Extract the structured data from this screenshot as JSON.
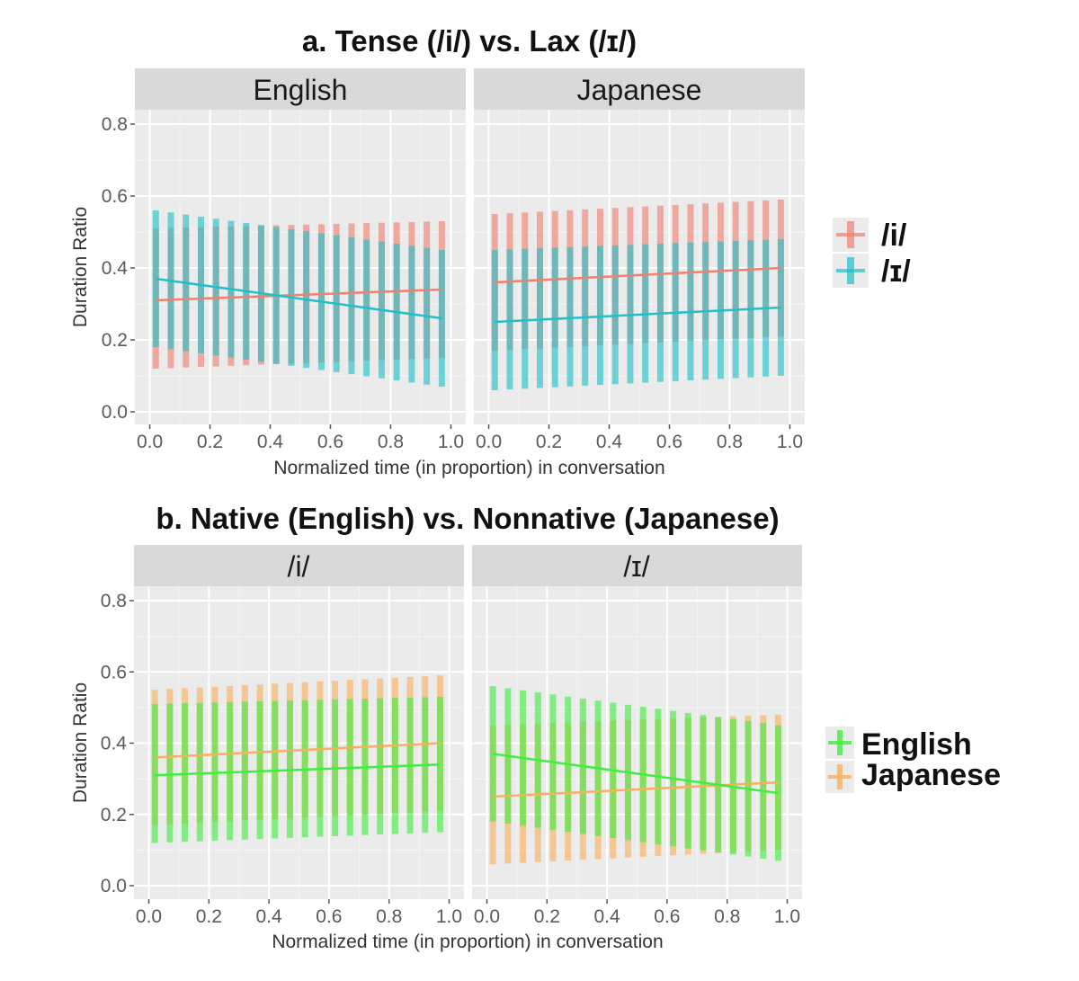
{
  "chart_data": [
    {
      "type": "line",
      "title": "a. Tense (/i/) vs. Lax (/ɪ/)",
      "ylabel": "Duration Ratio",
      "xlabel": "Normalized time (in proportion) in conversation",
      "ylim": [
        0,
        0.85
      ],
      "xlim": [
        0,
        1
      ],
      "yticks": [
        0.0,
        0.2,
        0.4,
        0.6,
        0.8
      ],
      "ytick_labels": [
        "0.0",
        "0.2",
        "0.4",
        "0.6",
        "0.8"
      ],
      "xticks": [
        0.0,
        0.2,
        0.4,
        0.6,
        0.8,
        1.0
      ],
      "xtick_labels": [
        "0.0",
        "0.2",
        "0.4",
        "0.6",
        "0.8",
        "1.0"
      ],
      "grid": true,
      "legend_position": "right",
      "legend": [
        {
          "label": "/i/",
          "color": "#f08070"
        },
        {
          "label": "/ɪ/",
          "color": "#20c0c8"
        }
      ],
      "x": [
        0.02,
        0.07,
        0.12,
        0.17,
        0.22,
        0.27,
        0.32,
        0.37,
        0.42,
        0.47,
        0.52,
        0.57,
        0.62,
        0.67,
        0.72,
        0.77,
        0.82,
        0.87,
        0.92,
        0.97
      ],
      "panels": [
        {
          "label": "English",
          "series": [
            {
              "name": "/i/",
              "color": "#f08070",
              "mean_start": 0.31,
              "mean_end": 0.34,
              "upper_start": 0.51,
              "upper_end": 0.53,
              "lower_start": 0.12,
              "lower_end": 0.15
            },
            {
              "name": "/ɪ/",
              "color": "#20c0c8",
              "mean_start": 0.37,
              "mean_end": 0.26,
              "upper_start": 0.56,
              "upper_end": 0.45,
              "lower_start": 0.18,
              "lower_end": 0.07
            }
          ]
        },
        {
          "label": "Japanese",
          "series": [
            {
              "name": "/i/",
              "color": "#f08070",
              "mean_start": 0.36,
              "mean_end": 0.4,
              "upper_start": 0.55,
              "upper_end": 0.59,
              "lower_start": 0.17,
              "lower_end": 0.21
            },
            {
              "name": "/ɪ/",
              "color": "#20c0c8",
              "mean_start": 0.25,
              "mean_end": 0.29,
              "upper_start": 0.45,
              "upper_end": 0.48,
              "lower_start": 0.06,
              "lower_end": 0.1
            }
          ]
        }
      ]
    },
    {
      "type": "line",
      "title": "b. Native (English) vs. Nonnative (Japanese)",
      "ylabel": "Duration Ratio",
      "xlabel": "Normalized time (in proportion) in conversation",
      "ylim": [
        0,
        0.85
      ],
      "xlim": [
        0,
        1
      ],
      "yticks": [
        0.0,
        0.2,
        0.4,
        0.6,
        0.8
      ],
      "ytick_labels": [
        "0.0",
        "0.2",
        "0.4",
        "0.6",
        "0.8"
      ],
      "xticks": [
        0.0,
        0.2,
        0.4,
        0.6,
        0.8,
        1.0
      ],
      "xtick_labels": [
        "0.0",
        "0.2",
        "0.4",
        "0.6",
        "0.8",
        "1.0"
      ],
      "grid": true,
      "legend_position": "right",
      "legend": [
        {
          "label": "English",
          "color": "#40ee40"
        },
        {
          "label": "Japanese",
          "color": "#f8b060"
        }
      ],
      "x": [
        0.02,
        0.07,
        0.12,
        0.17,
        0.22,
        0.27,
        0.32,
        0.37,
        0.42,
        0.47,
        0.52,
        0.57,
        0.62,
        0.67,
        0.72,
        0.77,
        0.82,
        0.87,
        0.92,
        0.97
      ],
      "panels": [
        {
          "label": "/i/",
          "series": [
            {
              "name": "Japanese",
              "color": "#f8b060",
              "mean_start": 0.36,
              "mean_end": 0.4,
              "upper_start": 0.55,
              "upper_end": 0.59,
              "lower_start": 0.17,
              "lower_end": 0.21
            },
            {
              "name": "English",
              "color": "#40ee40",
              "mean_start": 0.31,
              "mean_end": 0.34,
              "upper_start": 0.51,
              "upper_end": 0.53,
              "lower_start": 0.12,
              "lower_end": 0.15
            }
          ]
        },
        {
          "label": "/ɪ/",
          "series": [
            {
              "name": "Japanese",
              "color": "#f8b060",
              "mean_start": 0.25,
              "mean_end": 0.29,
              "upper_start": 0.45,
              "upper_end": 0.48,
              "lower_start": 0.06,
              "lower_end": 0.1
            },
            {
              "name": "English",
              "color": "#40ee40",
              "mean_start": 0.37,
              "mean_end": 0.26,
              "upper_start": 0.56,
              "upper_end": 0.45,
              "lower_start": 0.18,
              "lower_end": 0.07
            }
          ]
        }
      ]
    }
  ]
}
